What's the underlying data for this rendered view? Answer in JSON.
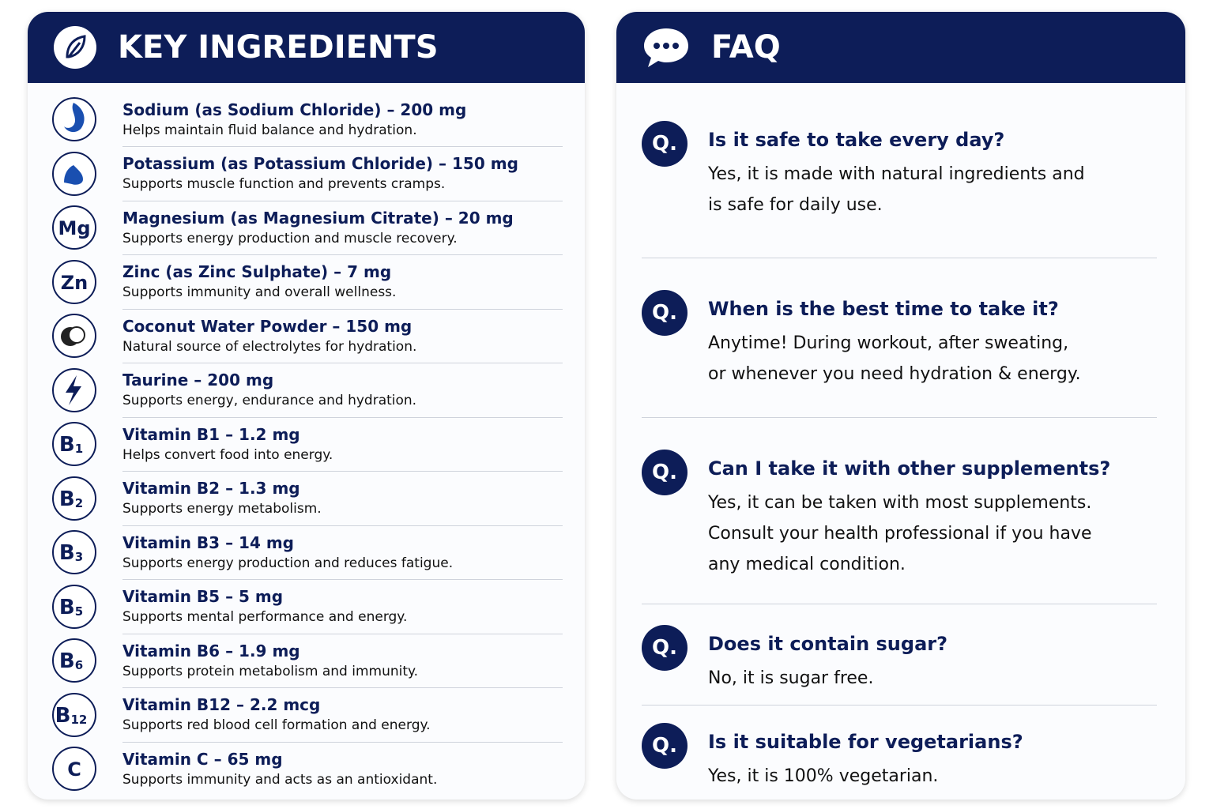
{
  "ingredients": {
    "title": "KEY INGREDIENTS",
    "separator": "–",
    "items": [
      {
        "name": "Sodium (as Sodium Chloride)",
        "amount": "200 mg",
        "description": "Helps maintain fluid balance and hydration."
      },
      {
        "name": "Potassium (as Potassium Chloride)",
        "amount": "150 mg",
        "description": "Supports muscle function and prevents cramps."
      },
      {
        "icon": "Mg",
        "name": "Magnesium (as Magnesium Citrate)",
        "amount": "20 mg",
        "description": "Supports energy production and muscle recovery."
      },
      {
        "icon": "Zn",
        "name": "Zinc (as Zinc Sulphate)",
        "amount": "7 mg",
        "description": "Supports immunity and overall wellness."
      },
      {
        "name": "Coconut Water Powder",
        "amount": "150 mg",
        "description": "Natural source of electrolytes for hydration."
      },
      {
        "name": "Taurine",
        "amount": "200 mg",
        "description": "Supports energy, endurance and hydration."
      },
      {
        "icon": "B",
        "icon_sub": "1",
        "name": "Vitamin B1",
        "amount": "1.2 mg",
        "description": "Helps convert food into energy."
      },
      {
        "icon": "B",
        "icon_sub": "2",
        "name": "Vitamin B2",
        "amount": "1.3 mg",
        "description": "Supports energy metabolism."
      },
      {
        "icon": "B",
        "icon_sub": "3",
        "name": "Vitamin B3",
        "amount": "14 mg",
        "description": "Supports energy production and reduces fatigue."
      },
      {
        "icon": "B",
        "icon_sub": "5",
        "name": "Vitamin B5",
        "amount": "5 mg",
        "description": "Supports mental performance and energy."
      },
      {
        "icon": "B",
        "icon_sub": "6",
        "name": "Vitamin B6",
        "amount": "1.9 mg",
        "description": "Supports protein metabolism and immunity."
      },
      {
        "icon": "B",
        "icon_sub": "12",
        "name": "Vitamin B12",
        "amount": "2.2 mcg",
        "description": "Supports red blood cell formation and energy."
      },
      {
        "icon": "C",
        "name": "Vitamin C",
        "amount": "65 mg",
        "description": "Supports immunity and acts as an antioxidant."
      }
    ]
  },
  "faq": {
    "title": "FAQ",
    "items": [
      {
        "marker": "Q.",
        "question": "Is it safe to take every day?",
        "answer": [
          "Yes, it is made with natural ingredients and",
          "is safe for daily use."
        ]
      },
      {
        "marker": "Q.",
        "question": "When is the best time to take it?",
        "answer": [
          "Anytime! During workout, after sweating,",
          "or whenever you need hydration & energy."
        ]
      },
      {
        "marker": "Q.",
        "question": "Can I take it with other supplements?",
        "answer": [
          "Yes, it can be taken with most supplements.",
          "Consult your health professional if you have",
          "any medical condition."
        ]
      },
      {
        "marker": "Q.",
        "question": "Does it contain sugar?",
        "answer": [
          "No, it is sugar free."
        ]
      },
      {
        "marker": "Q.",
        "question": "Is it suitable for vegetarians?",
        "answer": [
          "Yes, it is 100% vegetarian."
        ]
      }
    ]
  }
}
